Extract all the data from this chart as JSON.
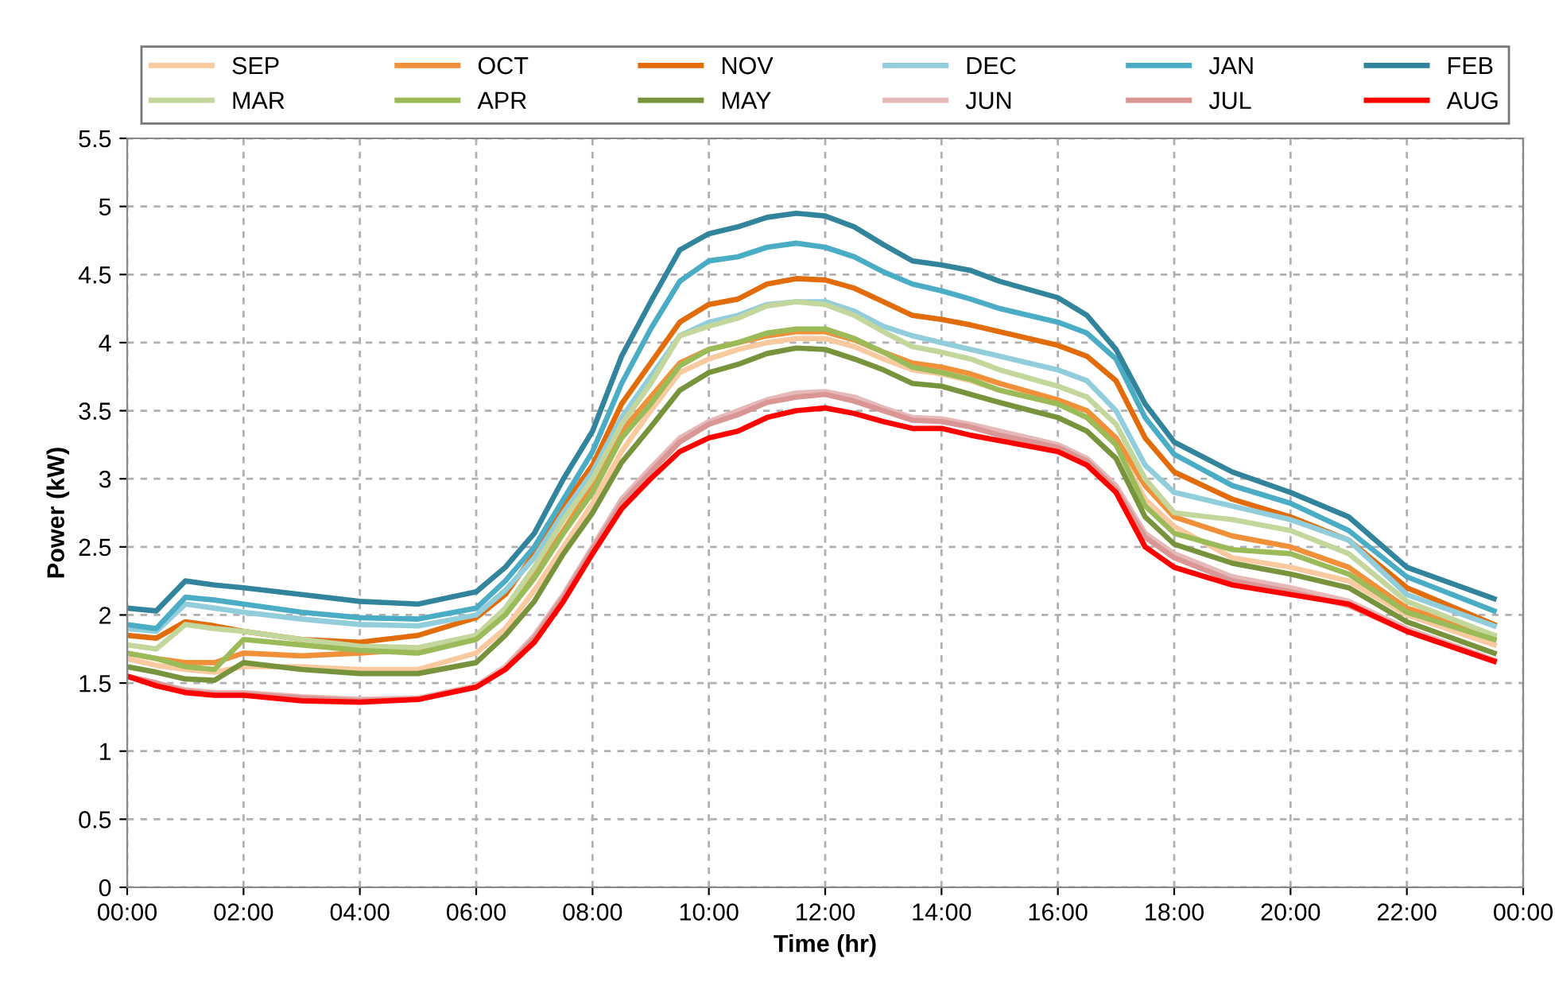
{
  "chart_data": {
    "type": "line",
    "xlabel": "Time (hr)",
    "ylabel": "Power (kW)",
    "x": [
      0,
      0.5,
      1,
      1.5,
      2,
      3,
      4,
      5,
      6,
      6.5,
      7,
      7.5,
      8,
      8.5,
      9,
      9.5,
      10,
      10.5,
      11,
      11.5,
      12,
      12.5,
      13,
      13.5,
      14,
      14.5,
      15,
      16,
      16.5,
      17,
      17.5,
      18,
      19,
      20,
      21,
      22,
      23.5
    ],
    "xlim": [
      0,
      24
    ],
    "xticks": [
      {
        "value": 0,
        "label": "00:00"
      },
      {
        "value": 2,
        "label": "02:00"
      },
      {
        "value": 4,
        "label": "04:00"
      },
      {
        "value": 6,
        "label": "06:00"
      },
      {
        "value": 8,
        "label": "08:00"
      },
      {
        "value": 10,
        "label": "10:00"
      },
      {
        "value": 12,
        "label": "12:00"
      },
      {
        "value": 14,
        "label": "14:00"
      },
      {
        "value": 16,
        "label": "16:00"
      },
      {
        "value": 18,
        "label": "18:00"
      },
      {
        "value": 20,
        "label": "20:00"
      },
      {
        "value": 22,
        "label": "22:00"
      },
      {
        "value": 24,
        "label": "00:00"
      }
    ],
    "ylim": [
      0,
      5.5
    ],
    "yticks": [
      0,
      0.5,
      1,
      1.5,
      2,
      2.5,
      3,
      3.5,
      4,
      4.5,
      5,
      5.5
    ],
    "grid": true,
    "legend": "top",
    "marker": "none",
    "line_style": "solid",
    "series": [
      {
        "name": "SEP",
        "color": "#f9c9a0",
        "values": [
          1.68,
          1.63,
          1.6,
          1.58,
          1.62,
          1.62,
          1.6,
          1.6,
          1.72,
          1.9,
          2.18,
          2.5,
          2.82,
          3.2,
          3.5,
          3.78,
          3.88,
          3.95,
          4.0,
          4.03,
          4.03,
          3.97,
          3.88,
          3.8,
          3.77,
          3.72,
          3.65,
          3.55,
          3.45,
          3.25,
          2.85,
          2.65,
          2.42,
          2.35,
          2.25,
          2.0,
          1.78
        ]
      },
      {
        "name": "OCT",
        "color": "#f0913a",
        "values": [
          1.72,
          1.68,
          1.65,
          1.65,
          1.72,
          1.7,
          1.72,
          1.75,
          1.85,
          2.02,
          2.3,
          2.62,
          2.95,
          3.35,
          3.6,
          3.85,
          3.95,
          4.0,
          4.05,
          4.08,
          4.08,
          4.02,
          3.93,
          3.85,
          3.82,
          3.77,
          3.7,
          3.58,
          3.5,
          3.3,
          2.95,
          2.72,
          2.58,
          2.5,
          2.35,
          2.05,
          1.85
        ]
      },
      {
        "name": "NOV",
        "color": "#e26b0a",
        "values": [
          1.85,
          1.83,
          1.95,
          1.92,
          1.88,
          1.82,
          1.8,
          1.85,
          1.98,
          2.15,
          2.45,
          2.8,
          3.1,
          3.55,
          3.85,
          4.15,
          4.28,
          4.32,
          4.43,
          4.47,
          4.46,
          4.4,
          4.3,
          4.2,
          4.17,
          4.13,
          4.08,
          3.98,
          3.9,
          3.72,
          3.3,
          3.05,
          2.85,
          2.72,
          2.55,
          2.2,
          1.93
        ]
      },
      {
        "name": "DEC",
        "color": "#92cddc",
        "values": [
          1.9,
          1.88,
          2.08,
          2.05,
          2.02,
          1.97,
          1.93,
          1.92,
          2.0,
          2.18,
          2.42,
          2.75,
          3.05,
          3.45,
          3.75,
          4.05,
          4.15,
          4.2,
          4.28,
          4.3,
          4.3,
          4.23,
          4.12,
          4.05,
          4.0,
          3.95,
          3.9,
          3.8,
          3.72,
          3.5,
          3.1,
          2.9,
          2.8,
          2.7,
          2.55,
          2.15,
          1.92
        ]
      },
      {
        "name": "JAN",
        "color": "#4bacc6",
        "values": [
          1.93,
          1.9,
          2.13,
          2.11,
          2.08,
          2.02,
          1.98,
          1.97,
          2.05,
          2.25,
          2.5,
          2.85,
          3.2,
          3.7,
          4.1,
          4.45,
          4.6,
          4.63,
          4.7,
          4.73,
          4.7,
          4.63,
          4.52,
          4.43,
          4.38,
          4.32,
          4.25,
          4.15,
          4.07,
          3.88,
          3.45,
          3.18,
          2.95,
          2.82,
          2.62,
          2.28,
          2.03
        ]
      },
      {
        "name": "FEB",
        "color": "#31849b",
        "values": [
          2.05,
          2.03,
          2.25,
          2.22,
          2.2,
          2.15,
          2.1,
          2.08,
          2.17,
          2.35,
          2.6,
          3.0,
          3.35,
          3.9,
          4.3,
          4.68,
          4.8,
          4.85,
          4.92,
          4.95,
          4.93,
          4.85,
          4.72,
          4.6,
          4.57,
          4.53,
          4.45,
          4.33,
          4.2,
          3.95,
          3.55,
          3.27,
          3.05,
          2.9,
          2.72,
          2.35,
          2.12
        ]
      },
      {
        "name": "MAR",
        "color": "#c3d69b",
        "values": [
          1.78,
          1.75,
          1.93,
          1.9,
          1.88,
          1.82,
          1.77,
          1.76,
          1.85,
          2.05,
          2.35,
          2.7,
          3.0,
          3.4,
          3.7,
          4.05,
          4.12,
          4.18,
          4.27,
          4.3,
          4.28,
          4.2,
          4.08,
          3.97,
          3.93,
          3.88,
          3.8,
          3.68,
          3.6,
          3.4,
          3.0,
          2.75,
          2.7,
          2.62,
          2.45,
          2.1,
          1.85
        ]
      },
      {
        "name": "APR",
        "color": "#9bbb59",
        "values": [
          1.72,
          1.68,
          1.62,
          1.6,
          1.82,
          1.78,
          1.74,
          1.72,
          1.82,
          2.0,
          2.27,
          2.6,
          2.9,
          3.3,
          3.55,
          3.83,
          3.95,
          4.0,
          4.07,
          4.1,
          4.1,
          4.03,
          3.93,
          3.82,
          3.78,
          3.73,
          3.65,
          3.55,
          3.45,
          3.25,
          2.8,
          2.6,
          2.48,
          2.45,
          2.3,
          2.02,
          1.82
        ]
      },
      {
        "name": "MAY",
        "color": "#77933c",
        "values": [
          1.62,
          1.58,
          1.53,
          1.52,
          1.65,
          1.6,
          1.57,
          1.57,
          1.65,
          1.85,
          2.1,
          2.45,
          2.75,
          3.12,
          3.38,
          3.65,
          3.78,
          3.84,
          3.92,
          3.96,
          3.95,
          3.88,
          3.8,
          3.7,
          3.68,
          3.62,
          3.56,
          3.45,
          3.35,
          3.15,
          2.72,
          2.52,
          2.38,
          2.3,
          2.2,
          1.95,
          1.72
        ]
      },
      {
        "name": "JUN",
        "color": "#e6b9b8",
        "values": [
          1.55,
          1.5,
          1.45,
          1.43,
          1.43,
          1.4,
          1.38,
          1.39,
          1.48,
          1.62,
          1.85,
          2.15,
          2.5,
          2.85,
          3.08,
          3.3,
          3.42,
          3.5,
          3.58,
          3.63,
          3.64,
          3.6,
          3.52,
          3.45,
          3.44,
          3.4,
          3.35,
          3.25,
          3.15,
          2.95,
          2.6,
          2.45,
          2.28,
          2.2,
          2.1,
          1.9,
          1.67
        ]
      },
      {
        "name": "JUL",
        "color": "#d99694",
        "values": [
          1.55,
          1.5,
          1.44,
          1.42,
          1.42,
          1.39,
          1.37,
          1.38,
          1.47,
          1.6,
          1.83,
          2.13,
          2.48,
          2.82,
          3.05,
          3.27,
          3.4,
          3.47,
          3.56,
          3.6,
          3.62,
          3.57,
          3.5,
          3.43,
          3.42,
          3.38,
          3.32,
          3.23,
          3.13,
          2.92,
          2.57,
          2.42,
          2.25,
          2.17,
          2.07,
          1.88,
          1.66
        ]
      },
      {
        "name": "AUG",
        "color": "#ff0000",
        "values": [
          1.55,
          1.48,
          1.43,
          1.41,
          1.41,
          1.37,
          1.36,
          1.38,
          1.47,
          1.6,
          1.8,
          2.1,
          2.45,
          2.78,
          3.0,
          3.2,
          3.3,
          3.35,
          3.45,
          3.5,
          3.52,
          3.48,
          3.42,
          3.37,
          3.37,
          3.32,
          3.28,
          3.2,
          3.1,
          2.9,
          2.5,
          2.35,
          2.22,
          2.15,
          2.08,
          1.88,
          1.66
        ]
      }
    ]
  }
}
